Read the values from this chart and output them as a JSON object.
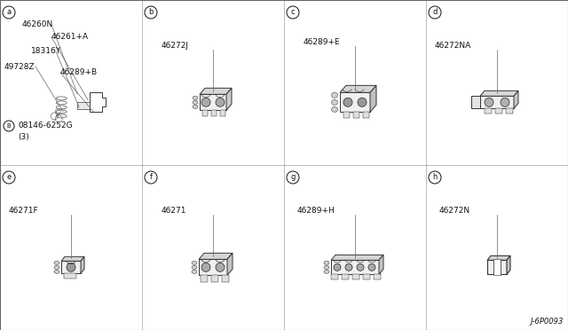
{
  "bg_color": "#ffffff",
  "border_color": "#888888",
  "text_color": "#111111",
  "line_color": "#666666",
  "comp_color": "#333333",
  "fig_width": 6.4,
  "fig_height": 3.72,
  "diagram_ref": "J-6P0093",
  "grid_cols": 4,
  "grid_rows": 2,
  "panels": [
    {
      "id": "a",
      "label": "a",
      "col": 0,
      "row": 0,
      "part_labels": [
        "46260N",
        "46261+A",
        "18316Y",
        "49728Z",
        "46289+B"
      ],
      "extra_label": "08146-6252G",
      "extra_sub": "(3)"
    },
    {
      "id": "b",
      "label": "b",
      "col": 1,
      "row": 0,
      "part_labels": [
        "46272J"
      ]
    },
    {
      "id": "c",
      "label": "c",
      "col": 2,
      "row": 0,
      "part_labels": [
        "46289+E"
      ]
    },
    {
      "id": "d",
      "label": "d",
      "col": 3,
      "row": 0,
      "part_labels": [
        "46272NA"
      ]
    },
    {
      "id": "e",
      "label": "e",
      "col": 0,
      "row": 1,
      "part_labels": [
        "46271F"
      ]
    },
    {
      "id": "f",
      "label": "f",
      "col": 1,
      "row": 1,
      "part_labels": [
        "46271"
      ]
    },
    {
      "id": "g",
      "label": "g",
      "col": 2,
      "row": 1,
      "part_labels": [
        "46289+H"
      ]
    },
    {
      "id": "h",
      "label": "h",
      "col": 3,
      "row": 1,
      "part_labels": [
        "46272N"
      ]
    }
  ]
}
